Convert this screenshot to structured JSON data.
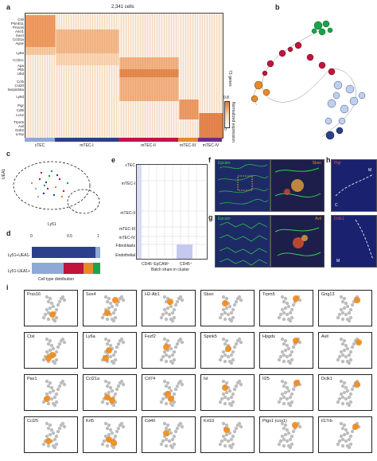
{
  "panel_letters": {
    "a": "a",
    "b": "b",
    "c": "c",
    "d": "d",
    "e": "e",
    "f": "f",
    "g": "g",
    "h": "h",
    "i": "i"
  },
  "panel_a": {
    "header": "2,341 cells",
    "genes_top": [
      "Ctsl",
      "Psmb11",
      "Prss16",
      "Ascl1",
      "Sox4",
      "Ccl21a",
      "Apoe",
      "Ly6a"
    ],
    "genes_mid": [
      "Ccl21c",
      "Apa",
      "Pltb",
      "Ubd",
      "Ccl5",
      "Ccl20",
      "Serpinb6a",
      "Ly6d"
    ],
    "genes_bot": [
      "Pigr",
      "Cd5l",
      "Lcn2",
      "Trpm5",
      "Avil",
      "Gnb3",
      "Lrmp"
    ],
    "side_label": "73 genes",
    "legend_max": "9.8",
    "legend_min": "0",
    "legend_title": "Normalized expression",
    "clusters": [
      {
        "name": "cTEC",
        "color": "#8fa9d6"
      },
      {
        "name": "mTEC-I",
        "color": "#2b3f8c"
      },
      {
        "name": "mTEC-II",
        "color": "#c4124e"
      },
      {
        "name": "mTEC-III",
        "color": "#e48a2c"
      },
      {
        "name": "mTEC-IV",
        "color": "#6a2d8f"
      }
    ]
  },
  "panel_c": {
    "ylabel": "UEA1",
    "xlabel": "Ly51"
  },
  "panel_d": {
    "tick0": "0",
    "tick05": "0.5",
    "tick1": "1",
    "row1": "Ly51+UEA1-",
    "row2": "Ly51-UEA1+",
    "xlabel": "Cell type distribution"
  },
  "panel_e": {
    "rows": [
      "cTEC",
      "mTEC-I",
      "mTEC-II",
      "mTEC-III",
      "mTEC-IV",
      "Fibroblasts",
      "Endothelial"
    ],
    "col1": "CD45⁻EpCAM⁺",
    "col2": "CD45⁺",
    "xlabel": "Batch share in cluster"
  },
  "panel_f": {
    "left_label": "Epcam",
    "right_label": "Sbsn"
  },
  "panel_g": {
    "left_label": "Epcam",
    "right_label": "Avil"
  },
  "panel_h": {
    "top_label": "Pigr",
    "bottom_label": "Dclk1",
    "m": "M",
    "c": "C"
  },
  "panel_i": {
    "genes": [
      "Prss16",
      "Sox4",
      "H2-Ab1",
      "Sbsn",
      "Trpm5",
      "Gng13",
      "Ctsl",
      "Ly6a",
      "Fezf2",
      "Spink5",
      "Hpgds",
      "Avil",
      "Pax1",
      "Ccl21a",
      "Cd74",
      "Ivl",
      "Il25",
      "Dclk1",
      "Ccl25",
      "Krt5",
      "Cd40",
      "Krt10",
      "Ptgs1 (cox1)",
      "Il17rb"
    ]
  }
}
